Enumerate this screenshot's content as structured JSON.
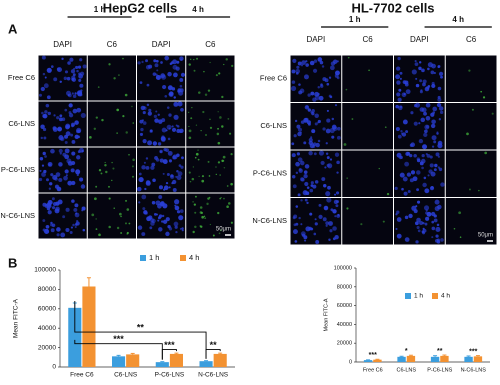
{
  "panel_a": {
    "label": "A",
    "left": {
      "title": "HepG2 cells",
      "times": [
        "1 h",
        "4 h"
      ],
      "channels": [
        "DAPI",
        "C6",
        "DAPI",
        "C6"
      ],
      "rows": [
        "Free C6",
        "C6-LNS",
        "P-C6-LNS",
        "N-C6-LNS"
      ],
      "scale": "50μm"
    },
    "right": {
      "title": "HL-7702 cells",
      "times": [
        "1 h",
        "4 h"
      ],
      "channels": [
        "DAPI",
        "C6",
        "DAPI",
        "C6"
      ],
      "rows": [
        "Free C6",
        "C6-LNS",
        "P-C6-LNS",
        "N-C6-LNS"
      ],
      "scale": "50μm"
    }
  },
  "panel_b": {
    "label": "B"
  },
  "chart_data": [
    {
      "type": "bar",
      "y_label": "Mean FITC-A",
      "categories": [
        "Free C6",
        "C6-LNS",
        "P-C6-LNS",
        "N-C6-LNS"
      ],
      "series": [
        {
          "name": "1 h",
          "color": "#3b9ede",
          "values": [
            61000,
            11000,
            5000,
            6000
          ],
          "errors": [
            5000,
            1000,
            500,
            500
          ]
        },
        {
          "name": "4 h",
          "color": "#f39232",
          "values": [
            83000,
            13000,
            13500,
            13500
          ],
          "errors": [
            9000,
            1000,
            800,
            800
          ]
        }
      ],
      "ylim": [
        0,
        100000
      ],
      "yticks": [
        0,
        20000,
        40000,
        60000,
        80000,
        100000
      ],
      "annotations": [
        "**",
        "***",
        "***",
        "**"
      ],
      "legend": "top"
    },
    {
      "type": "bar",
      "y_label": "Mean FITC-A",
      "categories": [
        "Free C6",
        "C6-LNS",
        "P-C6-LNS",
        "N-C6-LNS"
      ],
      "series": [
        {
          "name": "1 h",
          "color": "#3b9ede",
          "values": [
            2000,
            5500,
            5500,
            5500
          ],
          "errors": [
            300,
            600,
            1200,
            900
          ]
        },
        {
          "name": "4 h",
          "color": "#f39232",
          "values": [
            2500,
            6500,
            6500,
            6000
          ],
          "errors": [
            400,
            700,
            900,
            800
          ]
        }
      ],
      "ylim": [
        0,
        100000
      ],
      "yticks": [
        0,
        20000,
        40000,
        60000,
        80000,
        100000
      ],
      "annotations": [
        "***",
        "*",
        "**",
        "***"
      ],
      "legend": "top"
    }
  ]
}
